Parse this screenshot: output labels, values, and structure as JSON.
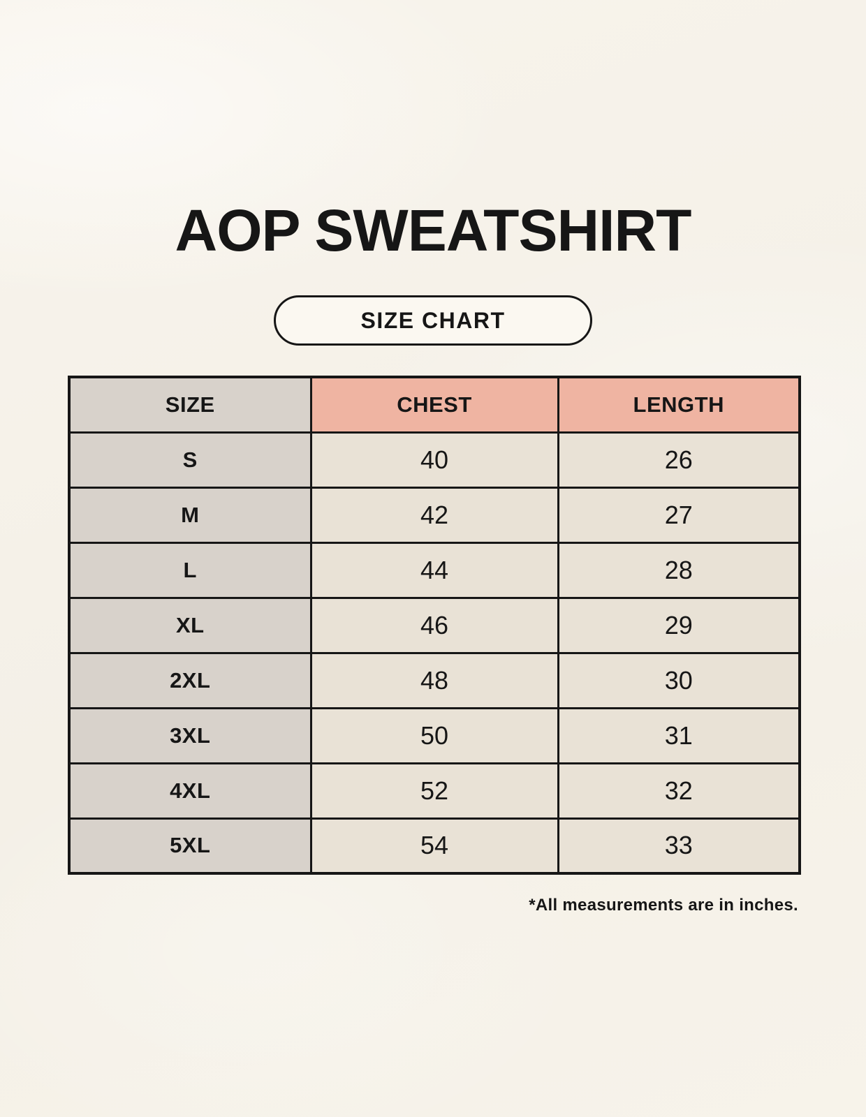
{
  "colors": {
    "background": "#f5f1e8",
    "ink": "#161616",
    "header_accent": "#efb4a2",
    "size_column": "#d8d2cb",
    "value_cell": "#e9e2d6",
    "pill_fill": "#fbf8f1"
  },
  "header": {
    "title": "AOP SWEATSHIRT",
    "badge_label": "SIZE CHART"
  },
  "chart_data": {
    "type": "table",
    "title": "AOP SWEATSHIRT",
    "subtitle": "SIZE CHART",
    "columns": [
      "SIZE",
      "CHEST",
      "LENGTH"
    ],
    "rows": [
      [
        "S",
        40,
        26
      ],
      [
        "M",
        42,
        27
      ],
      [
        "L",
        44,
        28
      ],
      [
        "XL",
        46,
        29
      ],
      [
        "2XL",
        48,
        30
      ],
      [
        "3XL",
        50,
        31
      ],
      [
        "4XL",
        52,
        32
      ],
      [
        "5XL",
        54,
        33
      ]
    ],
    "footnote": "*All measurements are in inches."
  }
}
